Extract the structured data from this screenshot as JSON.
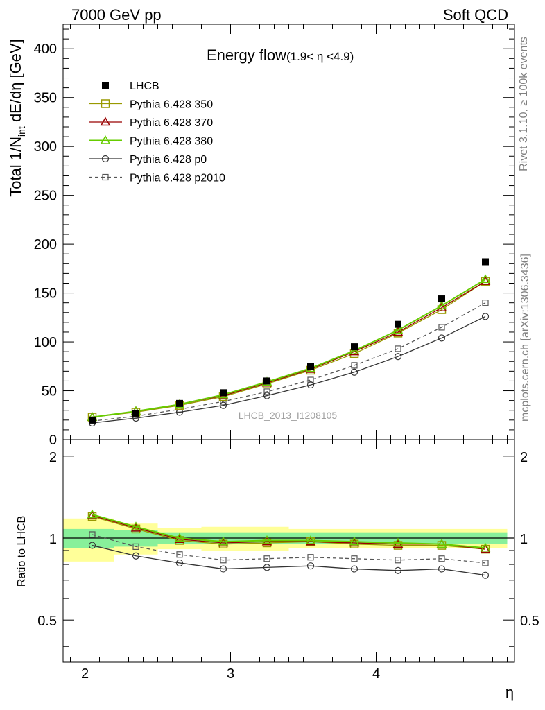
{
  "header": {
    "left": "7000 GeV pp",
    "right": "Soft QCD"
  },
  "side_labels": {
    "rivet": "Rivet 3.1.10, ≥ 100k events",
    "mcplots": "mcplots.cern.ch [arXiv:1306.3436]"
  },
  "chart_data": [
    {
      "type": "line",
      "title": "Energy flow",
      "title_suffix": "(1.9< η <4.9)",
      "ylabel": "Total 1/N",
      "ylabel_sub": "int",
      "ylabel_rest": " dE/dη [GeV]",
      "ylim": [
        0,
        425
      ],
      "xlim": [
        1.85,
        4.95
      ],
      "yticks": [
        "0",
        "50",
        "100",
        "150",
        "200",
        "250",
        "300",
        "350",
        "400"
      ],
      "watermark": "LHCB_2013_I1208105",
      "x": [
        2.05,
        2.35,
        2.65,
        2.95,
        3.25,
        3.55,
        3.85,
        4.15,
        4.45,
        4.75
      ],
      "series": [
        {
          "name": "LHCB",
          "color": "#000000",
          "marker": "filled-square",
          "line": "none",
          "values": [
            20,
            27,
            37,
            48,
            60,
            75,
            95,
            118,
            144,
            182
          ]
        },
        {
          "name": "Pythia 6.428 350",
          "color": "#999900",
          "marker": "open-square",
          "line": "solid",
          "values": [
            23,
            28,
            35,
            44,
            57,
            71,
            88,
            109,
            133,
            162
          ]
        },
        {
          "name": "Pythia 6.428 370",
          "color": "#990000",
          "marker": "open-triangle",
          "line": "solid",
          "values": [
            23,
            29,
            36,
            45,
            58,
            72,
            90,
            110,
            135,
            162
          ]
        },
        {
          "name": "Pythia 6.428 380",
          "color": "#66cc00",
          "marker": "open-triangle",
          "line": "solid",
          "values": [
            23,
            29,
            36,
            46,
            59,
            73,
            91,
            112,
            137,
            164
          ]
        },
        {
          "name": "Pythia 6.428 p0",
          "color": "#333333",
          "marker": "open-circle",
          "line": "solid",
          "values": [
            17,
            22,
            28,
            35,
            45,
            56,
            69,
            85,
            104,
            126
          ]
        },
        {
          "name": "Pythia 6.428 p2010",
          "color": "#555555",
          "marker": "open-square-small",
          "line": "dashed",
          "values": [
            19,
            24,
            31,
            39,
            49,
            61,
            76,
            93,
            115,
            140
          ]
        }
      ]
    },
    {
      "type": "line",
      "ylabel": "Ratio to LHCB",
      "xlabel": "η",
      "ylim": [
        0.35,
        2.3
      ],
      "xlim": [
        1.85,
        4.95
      ],
      "yticks": [
        "0.5",
        "1",
        "2"
      ],
      "xticks": [
        "2",
        "3",
        "4"
      ],
      "x": [
        2.05,
        2.35,
        2.65,
        2.95,
        3.25,
        3.55,
        3.85,
        4.15,
        4.45,
        4.75
      ],
      "bands": {
        "edges": [
          1.85,
          2.2,
          2.5,
          2.8,
          3.1,
          3.4,
          3.7,
          4.0,
          4.3,
          4.6,
          4.9
        ],
        "yellow_lo": [
          0.82,
          0.87,
          0.91,
          0.9,
          0.9,
          0.92,
          0.92,
          0.92,
          0.92,
          0.92
        ],
        "yellow_hi": [
          1.18,
          1.13,
          1.09,
          1.1,
          1.1,
          1.08,
          1.08,
          1.08,
          1.08,
          1.08
        ],
        "green_lo": [
          0.92,
          0.93,
          0.95,
          0.95,
          0.95,
          0.95,
          0.95,
          0.95,
          0.95,
          0.95
        ],
        "green_hi": [
          1.08,
          1.07,
          1.05,
          1.05,
          1.05,
          1.05,
          1.05,
          1.05,
          1.05,
          1.05
        ]
      },
      "series": [
        {
          "name": "Pythia 6.428 350",
          "values": [
            1.2,
            1.08,
            0.98,
            0.95,
            0.96,
            0.97,
            0.95,
            0.94,
            0.94,
            0.91
          ]
        },
        {
          "name": "Pythia 6.428 370",
          "values": [
            1.21,
            1.09,
            0.99,
            0.96,
            0.97,
            0.97,
            0.96,
            0.95,
            0.95,
            0.91
          ]
        },
        {
          "name": "Pythia 6.428 380",
          "values": [
            1.22,
            1.1,
            1.0,
            0.97,
            0.98,
            0.98,
            0.97,
            0.96,
            0.95,
            0.92
          ]
        },
        {
          "name": "Pythia 6.428 p0",
          "values": [
            0.94,
            0.86,
            0.81,
            0.77,
            0.78,
            0.79,
            0.77,
            0.76,
            0.77,
            0.73
          ]
        },
        {
          "name": "Pythia 6.428 p2010",
          "values": [
            1.03,
            0.93,
            0.87,
            0.83,
            0.84,
            0.85,
            0.84,
            0.83,
            0.84,
            0.81
          ]
        }
      ]
    }
  ]
}
